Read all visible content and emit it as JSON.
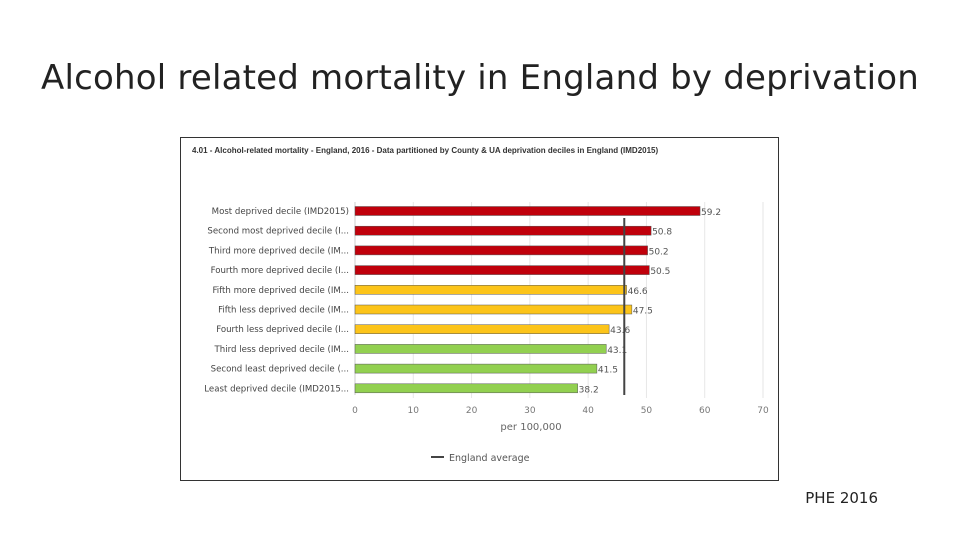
{
  "slide": {
    "title": "Alcohol related mortality in England by deprivation",
    "footer": "PHE 2016"
  },
  "chart_data": {
    "type": "bar",
    "orientation": "horizontal",
    "title": "4.01 - Alcohol-related mortality - England, 2016 - Data partitioned by County & UA deprivation deciles in England (IMD2015)",
    "xlabel": "per 100,000",
    "ylabel": "",
    "xlim": [
      0,
      70
    ],
    "xticks": [
      0,
      10,
      20,
      30,
      40,
      50,
      60,
      70
    ],
    "grid": true,
    "legend": "bottom",
    "categories": [
      "Most deprived decile (IMD2015)",
      "Second most deprived decile (I...",
      "Third more deprived decile (IM...",
      "Fourth more deprived decile (I...",
      "Fifth more deprived decile (IM...",
      "Fifth less deprived decile (IM...",
      "Fourth less deprived decile (I...",
      "Third less deprived decile (IM...",
      "Second least deprived decile (...",
      "Least deprived decile (IMD2015..."
    ],
    "values": [
      59.2,
      50.8,
      50.2,
      50.5,
      46.6,
      47.5,
      43.6,
      43.1,
      41.5,
      38.2
    ],
    "value_labels": [
      "59.2",
      "50.8",
      "50.2",
      "50.5",
      "46.6",
      "47.5",
      "43.6",
      "43.1",
      "41.5",
      "38.2"
    ],
    "bar_colors": [
      "#c0000b",
      "#c0000b",
      "#c0000b",
      "#c0000b",
      "#fcc419",
      "#fcc419",
      "#fcc419",
      "#92d050",
      "#92d050",
      "#92d050"
    ],
    "reference_line": {
      "name": "England average",
      "value": 46.2,
      "color": "#444444"
    }
  }
}
